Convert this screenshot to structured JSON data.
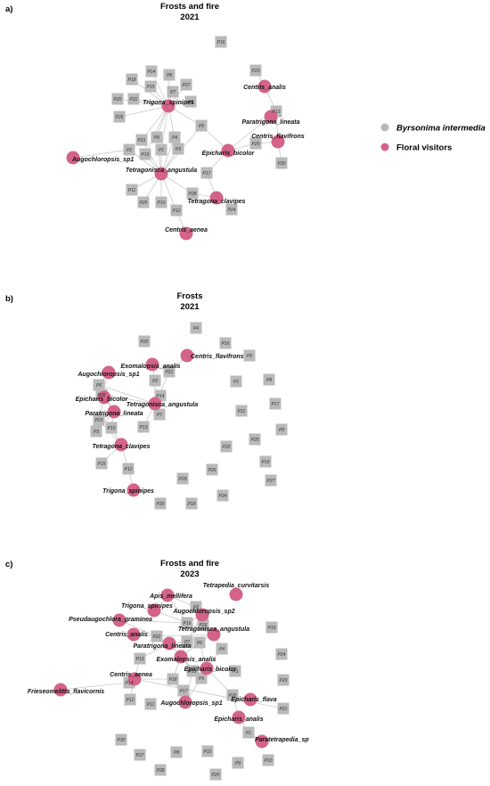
{
  "colors": {
    "plant": "#b9b9b9",
    "visitor": "#d4638a",
    "edge": "#c9c9c9"
  },
  "legend": [
    {
      "label": "Byrsonima intermedia",
      "type": "plant",
      "italic": true
    },
    {
      "label": "Floral visitors",
      "type": "visitor",
      "italic": false
    }
  ],
  "panels": [
    {
      "letter": "a)",
      "title": "Frosts and fire",
      "subtitle": "2021",
      "visitors": [
        "Trigona_spinipes",
        "Tetragonisca_angustula",
        "Augochloropsis_sp1",
        "Centris_aenea",
        "Tetragona_clavipes",
        "Epicharis_bicolor",
        "Centris_analis",
        "Paratrigona_lineata",
        "Centris_flavifrons"
      ],
      "plants": [
        "P16",
        "P14",
        "P8",
        "P18",
        "P15",
        "P27",
        "P20",
        "P22",
        "P7",
        "P6",
        "P26",
        "P21",
        "P9",
        "P19",
        "P5",
        "P4",
        "P1",
        "P3",
        "P2",
        "P11",
        "P25",
        "P10",
        "P12",
        "P17",
        "P28",
        "P24",
        "P23",
        "P13",
        "P29",
        "P30"
      ],
      "links": [
        [
          "Trigona_spinipes",
          "P14"
        ],
        [
          "Trigona_spinipes",
          "P8"
        ],
        [
          "Trigona_spinipes",
          "P18"
        ],
        [
          "Trigona_spinipes",
          "P15"
        ],
        [
          "Trigona_spinipes",
          "P27"
        ],
        [
          "Trigona_spinipes",
          "P20"
        ],
        [
          "Trigona_spinipes",
          "P22"
        ],
        [
          "Trigona_spinipes",
          "P7"
        ],
        [
          "Trigona_spinipes",
          "P6"
        ],
        [
          "Trigona_spinipes",
          "P26"
        ],
        [
          "Trigona_spinipes",
          "P21"
        ],
        [
          "Trigona_spinipes",
          "P19"
        ],
        [
          "Trigona_spinipes",
          "P5"
        ],
        [
          "Trigona_spinipes",
          "P4"
        ],
        [
          "Trigona_spinipes",
          "P1"
        ],
        [
          "Trigona_spinipes",
          "P9"
        ],
        [
          "Tetragonisca_angustula",
          "P21"
        ],
        [
          "Tetragonisca_angustula",
          "P19"
        ],
        [
          "Tetragonisca_angustula",
          "P5"
        ],
        [
          "Tetragonisca_angustula",
          "P4"
        ],
        [
          "Tetragonisca_angustula",
          "P1"
        ],
        [
          "Tetragonisca_angustula",
          "P3"
        ],
        [
          "Tetragonisca_angustula",
          "P2"
        ],
        [
          "Tetragonisca_angustula",
          "P11"
        ],
        [
          "Tetragonisca_angustula",
          "P25"
        ],
        [
          "Tetragonisca_angustula",
          "P10"
        ],
        [
          "Tetragonisca_angustula",
          "P12"
        ],
        [
          "Tetragonisca_angustula",
          "P9"
        ],
        [
          "Tetragonisca_angustula",
          "P28"
        ],
        [
          "Augochloropsis_sp1",
          "P2"
        ],
        [
          "Centris_aenea",
          "P12"
        ],
        [
          "Tetragona_clavipes",
          "P28"
        ],
        [
          "Tetragona_clavipes",
          "P17"
        ],
        [
          "Epicharis_bicolor",
          "P9"
        ],
        [
          "Epicharis_bicolor",
          "P17"
        ],
        [
          "Epicharis_bicolor",
          "P29"
        ],
        [
          "Epicharis_bicolor",
          "P13"
        ],
        [
          "Centris_analis",
          "P23"
        ],
        [
          "Centris_analis",
          "P13"
        ],
        [
          "Paratrigona_lineata",
          "P13"
        ],
        [
          "Centris_flavifrons",
          "P13"
        ],
        [
          "Centris_flavifrons",
          "P29"
        ],
        [
          "Centris_flavifrons",
          "P30"
        ]
      ]
    },
    {
      "letter": "b)",
      "title": "Frosts",
      "subtitle": "2021",
      "visitors": [
        "Centris_flavifrons",
        "Exomalopsis_analis",
        "Augochloropsis_sp1",
        "Epicharis_bicolor",
        "Tetragonisca_angustula",
        "Paratrigona_lineata",
        "Tetragona_clavipes",
        "Trigona_spinipes"
      ],
      "plants": [
        "P4",
        "P20",
        "P16",
        "P5",
        "P21",
        "P2",
        "P1",
        "P8",
        "P6",
        "P28",
        "P14",
        "P11",
        "P17",
        "P7",
        "P23",
        "P10",
        "P13",
        "P9",
        "P3",
        "P25",
        "P22",
        "P15",
        "P12",
        "P26",
        "P19",
        "P27",
        "P29",
        "P24",
        "P30",
        "P18"
      ],
      "links": [
        [
          "Centris_flavifrons",
          "P21"
        ],
        [
          "Exomalopsis_analis",
          "P2"
        ],
        [
          "Exomalopsis_analis",
          "P21"
        ],
        [
          "Augochloropsis_sp1",
          "P6"
        ],
        [
          "Augochloropsis_sp1",
          "P28"
        ],
        [
          "Epicharis_bicolor",
          "P28"
        ],
        [
          "Epicharis_bicolor",
          "P6"
        ],
        [
          "Epicharis_bicolor",
          "P23"
        ],
        [
          "Tetragonisca_angustula",
          "P2"
        ],
        [
          "Tetragonisca_angustula",
          "P21"
        ],
        [
          "Tetragonisca_angustula",
          "P14"
        ],
        [
          "Tetragonisca_angustula",
          "P7"
        ],
        [
          "Tetragonisca_angustula",
          "P13"
        ],
        [
          "Tetragonisca_angustula",
          "P6"
        ],
        [
          "Tetragonisca_angustula",
          "P28"
        ],
        [
          "Paratrigona_lineata",
          "P6"
        ],
        [
          "Paratrigona_lineata",
          "P28"
        ],
        [
          "Paratrigona_lineata",
          "P23"
        ],
        [
          "Paratrigona_lineata",
          "P10"
        ],
        [
          "Paratrigona_lineata",
          "P3"
        ],
        [
          "Tetragona_clavipes",
          "P10"
        ],
        [
          "Tetragona_clavipes",
          "P23"
        ],
        [
          "Tetragona_clavipes",
          "P15"
        ],
        [
          "Tetragona_clavipes",
          "P12"
        ],
        [
          "Trigona_spinipes",
          "P12"
        ]
      ]
    },
    {
      "letter": "c)",
      "title": "Frosts and fire",
      "subtitle": "2023",
      "visitors": [
        "Apis_mellifera",
        "Tetrapedia_curvitarsis",
        "Trigona_spinipes",
        "Augochloropsis_sp2",
        "Pseudaugochlora_graminea",
        "Centris_analis",
        "Tetragonisca_angustula",
        "Paratrigona_lineata",
        "Exomalopsis_analis",
        "Epicharis_bicolor",
        "Centris_aenea",
        "Frieseomelitta_flavicornis",
        "Augochloropsis_sp1",
        "Epicharis_flava",
        "Epicharis_analis",
        "Paratetrapedia_sp"
      ],
      "plants": [
        "P2",
        "P16",
        "P26",
        "P19",
        "P22",
        "P7",
        "P6",
        "P4",
        "P24",
        "P13",
        "P3",
        "P23",
        "P18",
        "P5",
        "P14",
        "P17",
        "P25",
        "P29",
        "P12",
        "P21",
        "P11",
        "P1",
        "P9",
        "P10",
        "P30",
        "P27",
        "P8",
        "P15",
        "P28",
        "P20"
      ],
      "links": [
        [
          "Apis_mellifera",
          "P2"
        ],
        [
          "Apis_mellifera",
          "P16"
        ],
        [
          "Augochloropsis_sp2",
          "P2"
        ],
        [
          "Augochloropsis_sp2",
          "P16"
        ],
        [
          "Augochloropsis_sp2",
          "P26"
        ],
        [
          "Augochloropsis_sp2",
          "P7"
        ],
        [
          "Trigona_spinipes",
          "P16"
        ],
        [
          "Pseudaugochlora_graminea",
          "P16"
        ],
        [
          "Pseudaugochlora_graminea",
          "P22"
        ],
        [
          "Centris_analis",
          "P22"
        ],
        [
          "Tetragonisca_angustula",
          "P16"
        ],
        [
          "Tetragonisca_angustula",
          "P7"
        ],
        [
          "Tetragonisca_angustula",
          "P6"
        ],
        [
          "Tetragonisca_angustula",
          "P4"
        ],
        [
          "Tetragonisca_angustula",
          "P22"
        ],
        [
          "Paratrigona_lineata",
          "P7"
        ],
        [
          "Paratrigona_lineata",
          "P22"
        ],
        [
          "Paratrigona_lineata",
          "P13"
        ],
        [
          "Paratrigona_lineata",
          "P6"
        ],
        [
          "Paratrigona_lineata",
          "P5"
        ],
        [
          "Exomalopsis_analis",
          "P7"
        ],
        [
          "Exomalopsis_analis",
          "P6"
        ],
        [
          "Exomalopsis_analis",
          "P23"
        ],
        [
          "Exomalopsis_analis",
          "P18"
        ],
        [
          "Exomalopsis_analis",
          "P5"
        ],
        [
          "Epicharis_bicolor",
          "P6"
        ],
        [
          "Epicharis_bicolor",
          "P4"
        ],
        [
          "Epicharis_bicolor",
          "P3"
        ],
        [
          "Epicharis_bicolor",
          "P5"
        ],
        [
          "Epicharis_bicolor",
          "P25"
        ],
        [
          "Centris_aenea",
          "P13"
        ],
        [
          "Centris_aenea",
          "P14"
        ],
        [
          "Centris_aenea",
          "P12"
        ],
        [
          "Centris_aenea",
          "P21"
        ],
        [
          "Centris_aenea",
          "P18"
        ],
        [
          "Frieseomelitta_flavicornis",
          "P14"
        ],
        [
          "Augochloropsis_sp1",
          "P18"
        ],
        [
          "Augochloropsis_sp1",
          "P17"
        ],
        [
          "Augochloropsis_sp1",
          "P5"
        ],
        [
          "Augochloropsis_sp1",
          "P23"
        ],
        [
          "Epicharis_flava",
          "P25"
        ],
        [
          "Epicharis_analis",
          "P25"
        ],
        [
          "Epicharis_analis",
          "P1"
        ],
        [
          "Paratetrapedia_sp",
          "P1"
        ]
      ]
    }
  ]
}
